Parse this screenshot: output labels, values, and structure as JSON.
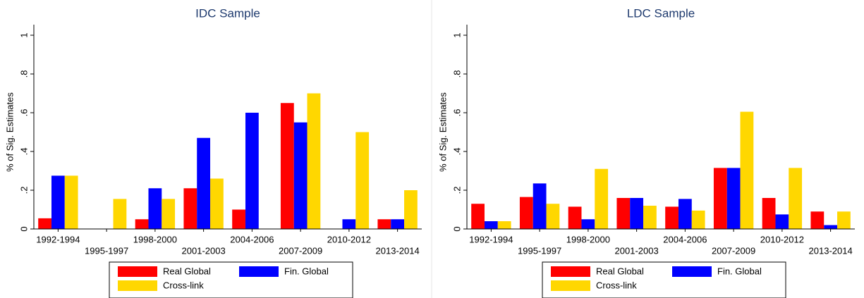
{
  "chart_data": [
    {
      "type": "bar",
      "title": "IDC Sample",
      "y_label": "% of Sig. Estimates",
      "categories": [
        "1992-1994",
        "1995-1997",
        "1998-2000",
        "2001-2003",
        "2004-2006",
        "2007-2009",
        "2010-2012",
        "2013-2014"
      ],
      "series": [
        {
          "name": "Real Global",
          "color": "#ff0000",
          "values": [
            0.055,
            0,
            0.05,
            0.21,
            0.1,
            0.65,
            0,
            0.05
          ]
        },
        {
          "name": "Fin. Global",
          "color": "#0000ff",
          "values": [
            0.275,
            0,
            0.21,
            0.47,
            0.6,
            0.55,
            0.05,
            0.05
          ]
        },
        {
          "name": "Cross-link",
          "color": "#ffd700",
          "values": [
            0.275,
            0.155,
            0.155,
            0.26,
            0,
            0.7,
            0.5,
            0.2
          ]
        }
      ],
      "ylim": [
        0,
        1
      ],
      "yticks": [
        0,
        {
          "value": 0.2,
          "label": ".2"
        },
        {
          "value": 0.4,
          "label": ".4"
        },
        {
          "value": 0.6,
          "label": ".6"
        },
        {
          "value": 0.8,
          "label": ".8"
        },
        1
      ]
    },
    {
      "type": "bar",
      "title": "LDC Sample",
      "y_label": "% of Sig. Estimates",
      "categories": [
        "1992-1994",
        "1995-1997",
        "1998-2000",
        "2001-2003",
        "2004-2006",
        "2007-2009",
        "2010-2012",
        "2013-2014"
      ],
      "series": [
        {
          "name": "Real Global",
          "color": "#ff0000",
          "values": [
            0.13,
            0.165,
            0.115,
            0.16,
            0.115,
            0.315,
            0.16,
            0.09
          ]
        },
        {
          "name": "Fin. Global",
          "color": "#0000ff",
          "values": [
            0.04,
            0.235,
            0.05,
            0.16,
            0.155,
            0.315,
            0.075,
            0.02
          ]
        },
        {
          "name": "Cross-link",
          "color": "#ffd700",
          "values": [
            0.04,
            0.13,
            0.31,
            0.12,
            0.095,
            0.605,
            0.315,
            0.09
          ]
        }
      ],
      "ylim": [
        0,
        1
      ],
      "yticks": [
        0,
        {
          "value": 0.2,
          "label": ".2"
        },
        {
          "value": 0.4,
          "label": ".4"
        },
        {
          "value": 0.6,
          "label": ".6"
        },
        {
          "value": 0.8,
          "label": ".8"
        },
        1
      ]
    }
  ]
}
